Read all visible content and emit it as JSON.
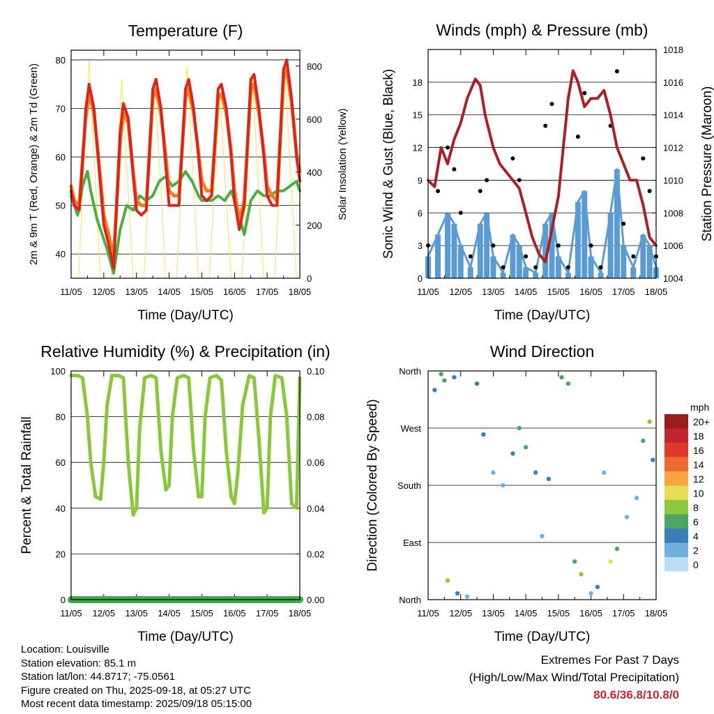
{
  "chart_data": [
    {
      "type": "line",
      "title": "Temperature (F)",
      "xlabel": "Time (Day/UTC)",
      "ylabel": "2m & 9m T (Red, Orange) & 2m Td (Green)",
      "ylabel_right": "Solar Insolation (Yellow)",
      "x_ticks": [
        "11/05",
        "12/05",
        "13/05",
        "14/05",
        "15/05",
        "16/05",
        "17/05",
        "18/05"
      ],
      "ylim": [
        35,
        82
      ],
      "y_ticks": [
        40,
        50,
        60,
        70,
        80
      ],
      "ylim_right": [
        0,
        860
      ],
      "y_ticks_right": [
        0,
        200,
        400,
        600,
        800
      ],
      "grid": "horizontal",
      "colors": {
        "temp_2m": "#d7261e",
        "temp_9m": "#f47d20",
        "dewpoint_2m": "#4aae42",
        "solar": "#f6e34a"
      },
      "series": [
        {
          "name": "2m T",
          "axis": "left",
          "color": "#d7261e",
          "x": [
            0,
            0.1,
            0.25,
            0.45,
            0.55,
            0.7,
            0.85,
            1.0,
            1.15,
            1.3,
            1.5,
            1.6,
            1.75,
            1.9,
            2.0,
            2.15,
            2.3,
            2.5,
            2.6,
            2.75,
            2.9,
            3.0,
            3.15,
            3.3,
            3.5,
            3.6,
            3.75,
            3.9,
            4.0,
            4.15,
            4.3,
            4.5,
            4.6,
            4.75,
            4.9,
            5.0,
            5.15,
            5.3,
            5.5,
            5.6,
            5.75,
            5.9,
            6.0,
            6.15,
            6.3,
            6.5,
            6.6,
            6.75,
            6.9,
            7.0
          ],
          "y": [
            53,
            50,
            49,
            70,
            75,
            70,
            58,
            46,
            42,
            37,
            65,
            71,
            68,
            56,
            49,
            48,
            49,
            74,
            76,
            70,
            58,
            50,
            50,
            50,
            74,
            76,
            70,
            60,
            52,
            51,
            52,
            74,
            75,
            70,
            60,
            51,
            45,
            50,
            76,
            77,
            70,
            60,
            52,
            50,
            50,
            78,
            80,
            72,
            60,
            55
          ]
        },
        {
          "name": "9m T",
          "axis": "left",
          "color": "#f47d20",
          "x": [
            0,
            0.1,
            0.25,
            0.45,
            0.55,
            0.7,
            0.85,
            1.0,
            1.15,
            1.3,
            1.5,
            1.6,
            1.75,
            1.9,
            2.0,
            2.15,
            2.3,
            2.5,
            2.6,
            2.75,
            2.9,
            3.0,
            3.15,
            3.3,
            3.5,
            3.6,
            3.75,
            3.9,
            4.0,
            4.15,
            4.3,
            4.5,
            4.6,
            4.75,
            4.9,
            5.0,
            5.15,
            5.3,
            5.5,
            5.6,
            5.75,
            5.9,
            6.0,
            6.15,
            6.3,
            6.5,
            6.6,
            6.75,
            6.9,
            7.0
          ],
          "y": [
            54,
            51,
            50,
            68,
            73,
            69,
            59,
            48,
            44,
            39,
            63,
            69,
            67,
            57,
            51,
            50,
            50,
            72,
            74,
            69,
            60,
            53,
            52,
            52,
            72,
            74,
            69,
            61,
            55,
            53,
            53,
            72,
            73,
            69,
            61,
            53,
            47,
            51,
            74,
            75,
            69,
            61,
            54,
            52,
            51,
            76,
            78,
            71,
            61,
            57
          ]
        },
        {
          "name": "2m Td",
          "axis": "left",
          "color": "#4aae42",
          "x": [
            0,
            0.2,
            0.35,
            0.5,
            0.6,
            0.8,
            1.0,
            1.1,
            1.3,
            1.5,
            1.7,
            1.9,
            2.1,
            2.3,
            2.5,
            2.7,
            2.9,
            3.1,
            3.3,
            3.5,
            3.7,
            3.9,
            4.0,
            4.3,
            4.5,
            4.7,
            4.9,
            5.1,
            5.3,
            5.5,
            5.7,
            5.9,
            6.1,
            6.3,
            6.5,
            6.7,
            6.9,
            7.0
          ],
          "y": [
            52,
            48,
            54,
            57,
            53,
            47,
            43,
            41,
            36,
            45,
            50,
            49,
            52,
            51,
            52,
            55,
            56,
            54,
            55,
            57,
            55,
            52,
            51,
            51,
            52,
            51,
            53,
            49,
            44,
            51,
            53,
            52,
            52,
            53,
            53,
            54,
            55,
            53
          ]
        },
        {
          "name": "Solar Insolation",
          "axis": "right",
          "color": "#f6e34a",
          "x": [
            0.0,
            0.23,
            0.55,
            0.9,
            1.23,
            1.55,
            1.9,
            2.23,
            2.55,
            2.9,
            3.23,
            3.55,
            3.9,
            4.23,
            4.55,
            4.9,
            5.23,
            5.55,
            5.9,
            6.23,
            6.55,
            6.9,
            7.0
          ],
          "y": [
            0,
            0,
            820,
            0,
            0,
            750,
            0,
            0,
            760,
            0,
            0,
            800,
            0,
            0,
            700,
            0,
            0,
            750,
            0,
            0,
            760,
            0,
            0
          ]
        }
      ]
    },
    {
      "type": "scatter",
      "title": "Winds (mph) & Pressure (mb)",
      "xlabel": "Time (Day/UTC)",
      "ylabel": "Sonic Wind & Gust (Blue, Black)",
      "ylabel_right": "Station Pressure (Maroon)",
      "x_ticks": [
        "11/05",
        "12/05",
        "13/05",
        "14/05",
        "15/05",
        "16/05",
        "17/05",
        "18/05"
      ],
      "ylim": [
        0,
        21
      ],
      "y_ticks": [
        0,
        3,
        6,
        9,
        12,
        15,
        18
      ],
      "ylim_right": [
        1004,
        1018
      ],
      "y_ticks_right": [
        1004,
        1006,
        1008,
        1010,
        1012,
        1014,
        1016,
        1018
      ],
      "grid": "horizontal",
      "colors": {
        "wind": "#5a9bd4",
        "gust": "#000000",
        "pressure": "#a52226"
      },
      "series": [
        {
          "name": "Sonic Wind",
          "axis": "left",
          "color": "#5a9bd4",
          "x": [
            0,
            0.3,
            0.6,
            0.8,
            1.0,
            1.3,
            1.6,
            1.8,
            2.0,
            2.3,
            2.6,
            2.8,
            3.0,
            3.3,
            3.6,
            3.8,
            4.0,
            4.3,
            4.6,
            4.8,
            5.0,
            5.3,
            5.6,
            5.8,
            6.0,
            6.3,
            6.6,
            6.8,
            7.0
          ],
          "y": [
            2,
            4,
            6,
            5,
            3,
            1,
            5,
            6,
            2,
            0.5,
            4,
            3,
            1,
            0.5,
            5,
            6,
            2,
            0.5,
            7,
            8,
            2,
            0.5,
            6,
            10,
            3,
            1,
            4,
            3,
            1
          ]
        },
        {
          "name": "Gust",
          "axis": "left",
          "color": "#000000",
          "x": [
            0,
            0.3,
            0.6,
            0.8,
            1.0,
            1.3,
            1.6,
            1.8,
            2.0,
            2.3,
            2.6,
            2.8,
            3.0,
            3.3,
            3.6,
            3.8,
            4.0,
            4.3,
            4.6,
            4.8,
            5.0,
            5.3,
            5.6,
            5.8,
            6.0,
            6.3,
            6.6,
            6.8,
            7.0
          ],
          "y": [
            3,
            8,
            12,
            10,
            6,
            2,
            8,
            9,
            3,
            1,
            11,
            9,
            2,
            1,
            14,
            16,
            3,
            1,
            13,
            17,
            3,
            1,
            14,
            19,
            5,
            2,
            11,
            8,
            2
          ]
        },
        {
          "name": "Station Pressure",
          "axis": "right",
          "color": "#a52226",
          "x": [
            0,
            0.2,
            0.4,
            0.6,
            0.8,
            1.0,
            1.2,
            1.45,
            1.6,
            1.75,
            2.0,
            2.2,
            2.4,
            2.6,
            2.8,
            3.0,
            3.2,
            3.4,
            3.6,
            3.8,
            4.0,
            4.1,
            4.3,
            4.45,
            4.6,
            4.8,
            5.0,
            5.2,
            5.4,
            5.6,
            5.8,
            6.0,
            6.2,
            6.4,
            6.6,
            6.8,
            7.0
          ],
          "y": [
            1010,
            1009.6,
            1012,
            1011,
            1012.5,
            1013.5,
            1015,
            1016.2,
            1015.8,
            1014,
            1012,
            1011,
            1010.5,
            1010,
            1009.5,
            1008,
            1006.5,
            1005.5,
            1005,
            1007,
            1009,
            1011,
            1015,
            1016.7,
            1016,
            1014.5,
            1015,
            1015,
            1015.5,
            1014,
            1012,
            1011,
            1010,
            1010,
            1008.5,
            1006.5,
            1006
          ]
        }
      ]
    },
    {
      "type": "line",
      "title": "Relative Humidity (%) & Precipitation (in)",
      "xlabel": "Time (Day/UTC)",
      "ylabel": "Percent & Total Rainfall",
      "x_ticks": [
        "11/05",
        "12/05",
        "13/05",
        "14/05",
        "15/05",
        "16/05",
        "17/05",
        "18/05"
      ],
      "ylim": [
        0,
        100
      ],
      "y_ticks": [
        0,
        20,
        40,
        60,
        80,
        100
      ],
      "ylim_right": [
        0,
        0.1
      ],
      "y_ticks_right": [
        "0.00",
        "0.02",
        "0.04",
        "0.06",
        "0.08",
        "0.10"
      ],
      "grid": "horizontal",
      "colors": {
        "rh": "#8cc63f",
        "precip": "#3fa94f"
      },
      "series": [
        {
          "name": "Relative Humidity",
          "axis": "left",
          "color": "#8cc63f",
          "x": [
            0,
            0.2,
            0.35,
            0.5,
            0.6,
            0.75,
            0.9,
            1.0,
            1.1,
            1.25,
            1.45,
            1.6,
            1.75,
            1.9,
            2.0,
            2.1,
            2.25,
            2.45,
            2.6,
            2.75,
            2.9,
            3.0,
            3.1,
            3.25,
            3.45,
            3.6,
            3.75,
            3.9,
            4.0,
            4.1,
            4.25,
            4.45,
            4.6,
            4.75,
            4.9,
            5.0,
            5.1,
            5.25,
            5.45,
            5.6,
            5.75,
            5.9,
            6.0,
            6.1,
            6.25,
            6.45,
            6.6,
            6.75,
            6.9,
            7.0
          ],
          "y": [
            98,
            98,
            97,
            80,
            60,
            45,
            44,
            60,
            85,
            98,
            98,
            97,
            60,
            37,
            40,
            75,
            97,
            98,
            97,
            65,
            48,
            50,
            80,
            97,
            98,
            97,
            65,
            45,
            45,
            80,
            97,
            98,
            96,
            65,
            45,
            42,
            55,
            85,
            98,
            97,
            70,
            38,
            40,
            80,
            98,
            97,
            80,
            42,
            40,
            97
          ]
        },
        {
          "name": "Total Precipitation",
          "axis": "right",
          "color": "#3fa94f",
          "x": [
            0,
            7
          ],
          "y": [
            0,
            0
          ]
        }
      ]
    },
    {
      "type": "scatter",
      "title": "Wind Direction",
      "xlabel": "Time (Day/UTC)",
      "ylabel": "Direction (Colored By Speed)",
      "x_ticks": [
        "11/05",
        "12/05",
        "13/05",
        "14/05",
        "15/05",
        "16/05",
        "17/05",
        "18/05"
      ],
      "y_tick_labels": [
        "North",
        "East",
        "South",
        "West",
        "North"
      ],
      "ylim": [
        0,
        360
      ],
      "grid": "horizontal",
      "legend": {
        "title": "mph",
        "placement": "right",
        "labels": [
          "20+",
          "18",
          "16",
          "14",
          "12",
          "10",
          "8",
          "6",
          "4",
          "2",
          "0"
        ],
        "colors": [
          "#9b1c1f",
          "#c1272d",
          "#e0382a",
          "#ef6a2f",
          "#f7a540",
          "#e5dd53",
          "#8dc63f",
          "#4aa566",
          "#3a7fb8",
          "#6fb0e0",
          "#b9def5"
        ]
      },
      "series": [
        {
          "name": "Wind Direction",
          "x": [
            0.2,
            0.4,
            0.5,
            0.6,
            0.8,
            0.9,
            1.2,
            1.5,
            1.7,
            2.0,
            2.3,
            2.6,
            2.8,
            3.0,
            3.3,
            3.5,
            3.7,
            4.1,
            4.3,
            4.5,
            4.7,
            5.0,
            5.2,
            5.4,
            5.6,
            5.8,
            6.1,
            6.4,
            6.6,
            6.8,
            6.9
          ],
          "y": [
            330,
            355,
            345,
            30,
            350,
            10,
            5,
            340,
            260,
            200,
            180,
            230,
            270,
            240,
            200,
            100,
            190,
            350,
            340,
            60,
            40,
            10,
            20,
            200,
            60,
            80,
            130,
            160,
            250,
            280,
            220
          ],
          "speed": [
            3,
            5,
            6,
            7,
            4,
            3,
            2,
            4,
            3,
            2,
            2,
            4,
            6,
            5,
            3,
            2,
            3,
            5,
            6,
            5,
            7,
            2,
            4,
            2,
            9,
            6,
            2,
            1,
            6,
            7,
            4
          ]
        }
      ]
    }
  ],
  "info": {
    "location": "Location: Louisville",
    "elevation": "Station elevation: 85.1 m",
    "latlon": "Station lat/lon: 44.8717; -75.0561",
    "created": "Figure created on Thu, 2025-09-18, at 05:27 UTC",
    "recent": "Most recent data timestamp: 2025/09/18 05:15:00"
  },
  "extremes": {
    "title": "Extremes For Past 7 Days",
    "subtitle": "(High/Low/Max Wind/Total Precipitation)",
    "values": "80.6/36.8/10.8/0"
  }
}
